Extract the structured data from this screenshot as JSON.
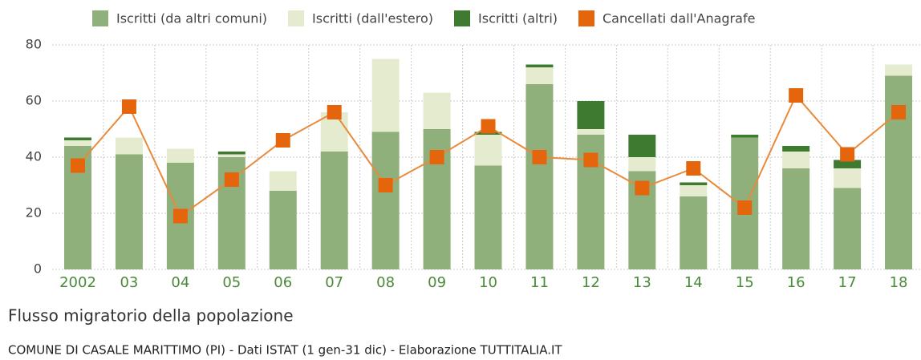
{
  "chart_data": {
    "type": "bar",
    "stacked": true,
    "title": "Flusso migratorio della popolazione",
    "subtitle": "COMUNE DI CASALE MARITTIMO (PI) - Dati ISTAT (1 gen-31 dic) - Elaborazione TUTTITALIA.IT",
    "categories": [
      "2002",
      "03",
      "04",
      "05",
      "06",
      "07",
      "08",
      "09",
      "10",
      "11",
      "12",
      "13",
      "14",
      "15",
      "16",
      "17",
      "18"
    ],
    "series": [
      {
        "name": "Iscritti (da altri comuni)",
        "color": "#8fb07a",
        "type": "bar",
        "values": [
          44,
          41,
          38,
          40,
          28,
          42,
          49,
          50,
          37,
          66,
          48,
          35,
          26,
          47,
          36,
          29,
          69
        ]
      },
      {
        "name": "Iscritti (dall'estero)",
        "color": "#e4ebcf",
        "type": "bar",
        "values": [
          2,
          6,
          5,
          1,
          7,
          14,
          26,
          13,
          11,
          6,
          2,
          5,
          4,
          0,
          6,
          7,
          4
        ]
      },
      {
        "name": "Iscritti (altri)",
        "color": "#3f7a31",
        "type": "bar",
        "values": [
          1,
          0,
          0,
          1,
          0,
          0,
          0,
          0,
          1,
          1,
          10,
          8,
          1,
          1,
          2,
          3,
          0
        ]
      },
      {
        "name": "Cancellati dall'Anagrafe",
        "color": "#e5650c",
        "type": "line",
        "values": [
          37,
          58,
          19,
          32,
          46,
          56,
          30,
          40,
          51,
          40,
          39,
          29,
          36,
          22,
          62,
          41,
          56
        ]
      }
    ],
    "ylim": [
      0,
      80
    ],
    "yticks": [
      0,
      20,
      40,
      60,
      80
    ],
    "grid": true,
    "legend": "top"
  }
}
